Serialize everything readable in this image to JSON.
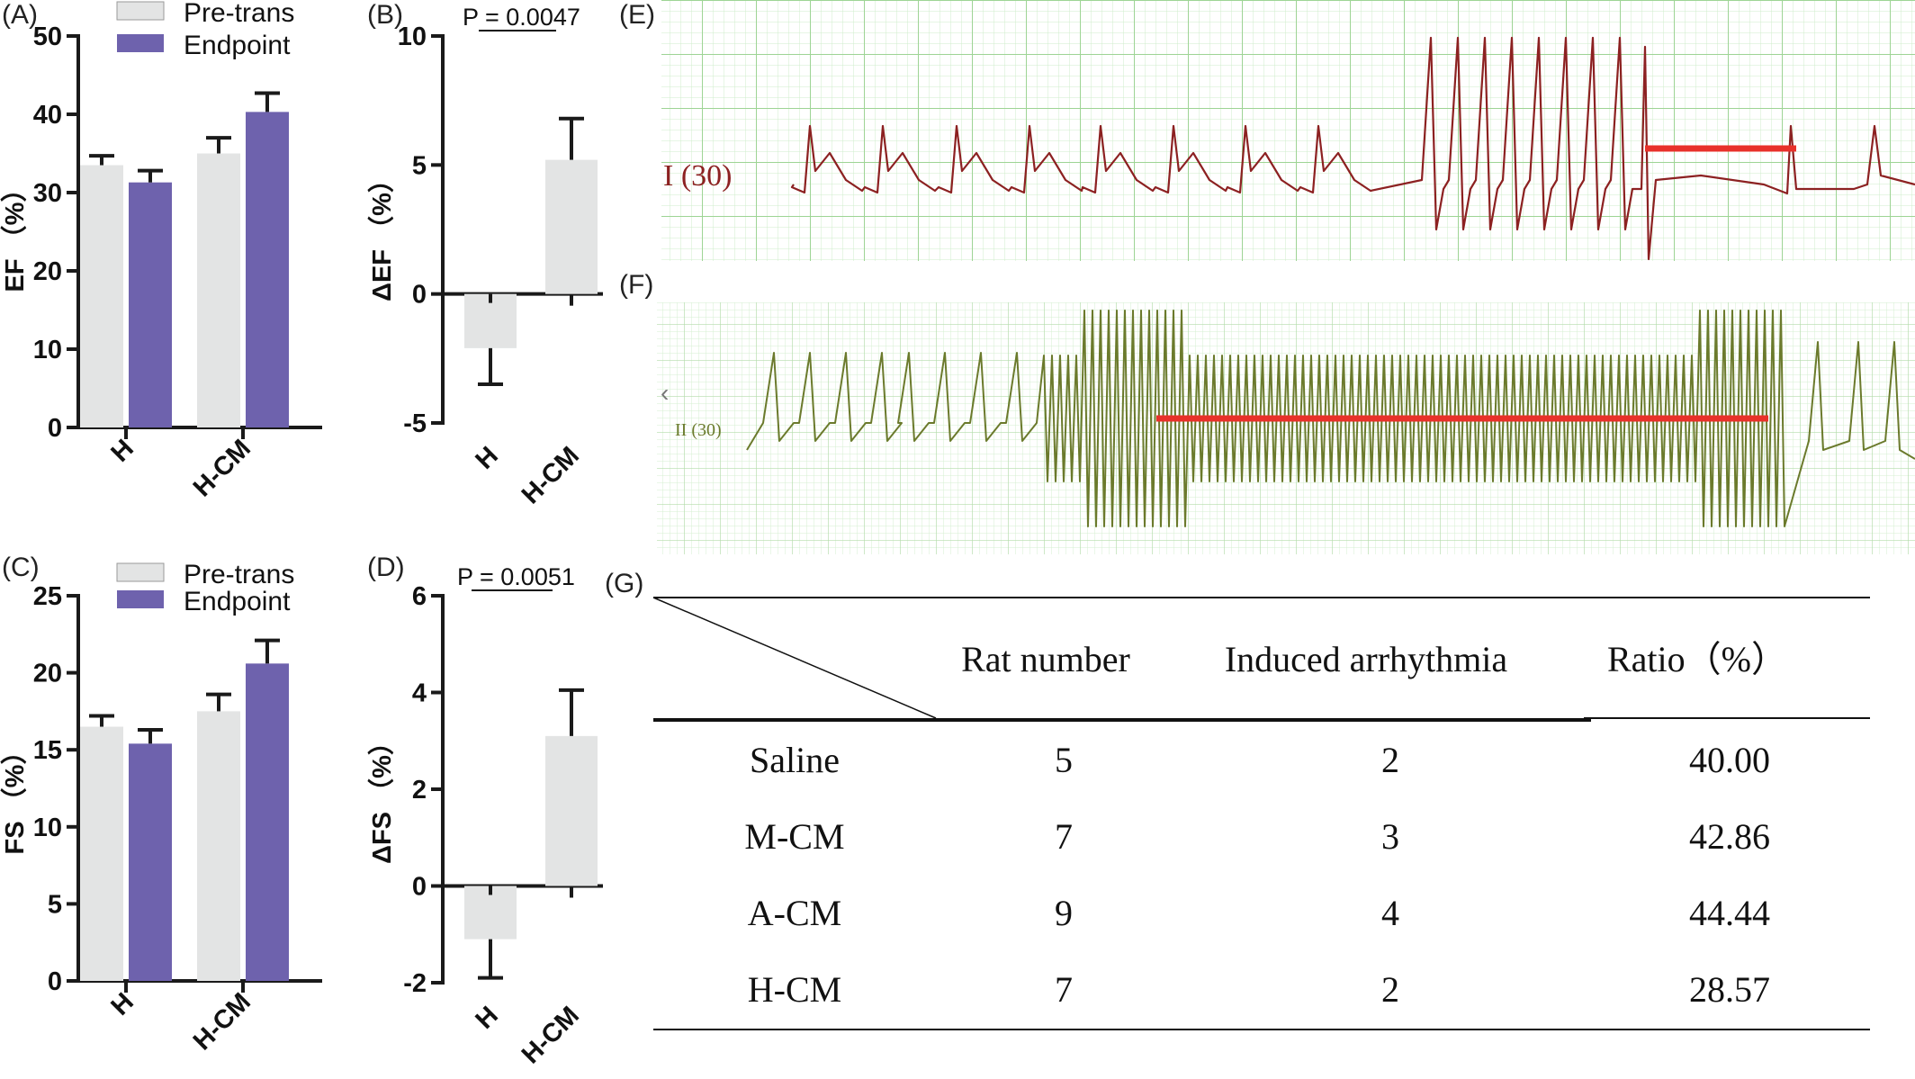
{
  "colors": {
    "pre": "#e3e4e4",
    "endpoint": "#6e62ad",
    "axis": "#1a1a1a",
    "ecg_e_trace": "#8c2121",
    "ecg_f_trace": "#6b7a2c",
    "ecg_grid": "#b9e0b2",
    "highlight": "#e8312a"
  },
  "panels": {
    "A": "(A)",
    "B": "(B)",
    "C": "(C)",
    "D": "(D)",
    "E": "(E)",
    "F": "(F)",
    "G": "(G)"
  },
  "ecg": {
    "E_lead_label": "I (30)",
    "F_lead_label": "II (30)"
  },
  "chart_data": [
    {
      "id": "A",
      "type": "bar",
      "ylabel": "EF （%）",
      "categories": [
        "H",
        "H-CM"
      ],
      "series": [
        {
          "name": "Pre-trans",
          "values": [
            33.5,
            35.0
          ],
          "errors": [
            1.2,
            2.0
          ]
        },
        {
          "name": "Endpoint",
          "values": [
            31.3,
            40.3
          ],
          "errors": [
            1.5,
            2.4
          ]
        }
      ],
      "ylim": [
        0,
        50
      ],
      "yticks": [
        0,
        10,
        20,
        30,
        40,
        50
      ]
    },
    {
      "id": "B",
      "type": "bar",
      "ylabel": "ΔEF （%）",
      "categories": [
        "H",
        "H-CM"
      ],
      "values": [
        -2.1,
        5.2
      ],
      "errors": [
        1.4,
        1.6
      ],
      "ylim": [
        -5,
        10
      ],
      "yticks": [
        -5,
        0,
        5,
        10
      ],
      "annotation": "P = 0.0047"
    },
    {
      "id": "C",
      "type": "bar",
      "ylabel": "FS （%）",
      "categories": [
        "H",
        "H-CM"
      ],
      "series": [
        {
          "name": "Pre-trans",
          "values": [
            16.5,
            17.5
          ],
          "errors": [
            0.7,
            1.1
          ]
        },
        {
          "name": "Endpoint",
          "values": [
            15.4,
            20.6
          ],
          "errors": [
            0.9,
            1.5
          ]
        }
      ],
      "ylim": [
        0,
        25
      ],
      "yticks": [
        0,
        5,
        10,
        15,
        20,
        25
      ]
    },
    {
      "id": "D",
      "type": "bar",
      "ylabel": "ΔFS （%）",
      "categories": [
        "H",
        "H-CM"
      ],
      "values": [
        -1.1,
        3.1
      ],
      "errors": [
        0.8,
        0.95
      ],
      "ylim": [
        -2,
        6
      ],
      "yticks": [
        -2,
        0,
        2,
        4,
        6
      ],
      "annotation": "P = 0.0051"
    },
    {
      "id": "G",
      "type": "table",
      "columns": [
        "Rat number",
        "Induced arrhythmia",
        "Ratio（%）"
      ],
      "rows": [
        {
          "group": "Saline",
          "cells": [
            "5",
            "2",
            "40.00"
          ]
        },
        {
          "group": "M-CM",
          "cells": [
            "7",
            "3",
            "42.86"
          ]
        },
        {
          "group": "A-CM",
          "cells": [
            "9",
            "4",
            "44.44"
          ]
        },
        {
          "group": "H-CM",
          "cells": [
            "7",
            "2",
            "28.57"
          ]
        }
      ]
    }
  ]
}
